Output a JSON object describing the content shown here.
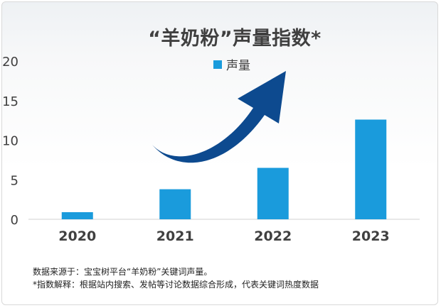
{
  "chart_data": {
    "type": "bar",
    "title": "“羊奶粉”声量指数*",
    "categories": [
      "2020",
      "2021",
      "2022",
      "2023"
    ],
    "series": [
      {
        "name": "声量",
        "values": [
          0.9,
          3.8,
          6.5,
          12.6
        ],
        "color": "#1a9bdc"
      }
    ],
    "ylim": [
      0,
      20
    ],
    "yticks": [
      "0",
      "5",
      "10",
      "15",
      "20"
    ],
    "grid": false,
    "legend": "top-center",
    "annotation": "large dark-blue upward curved arrow indicating growth"
  },
  "notes": {
    "source": "数据来源于：宝宝树平台“羊奶粉”关键词声量。",
    "definition": "*指数解释：根据站内搜索、发帖等讨论数据综合形成，代表关键词热度数据"
  },
  "colors": {
    "bar": "#1a9bdc",
    "arrow": "#0d4a8f",
    "text": "#404040"
  }
}
